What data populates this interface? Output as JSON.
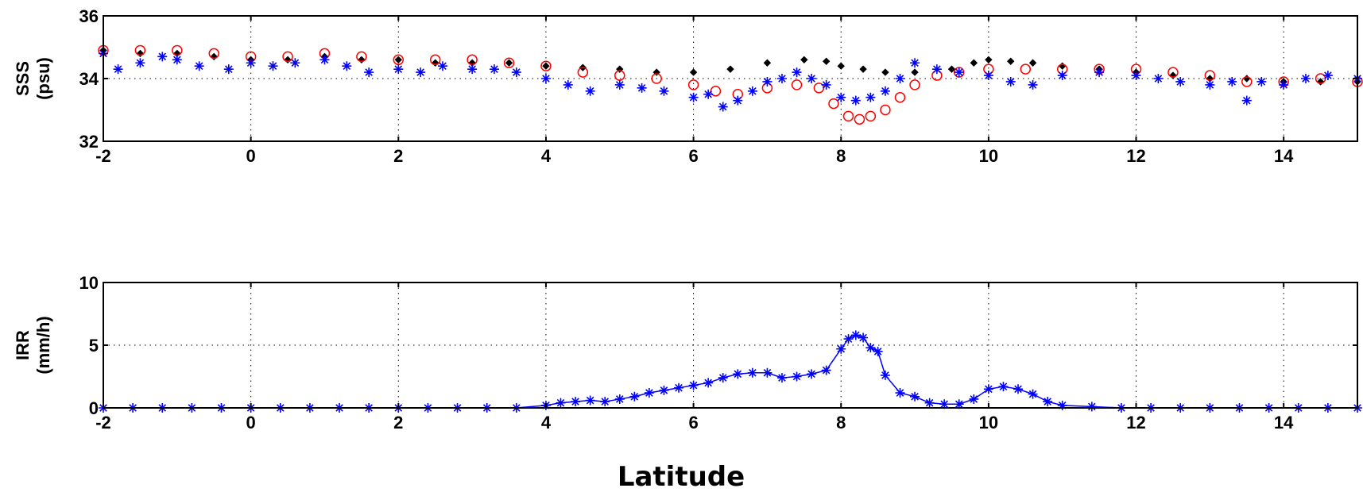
{
  "xlabel": "Latitude",
  "chart_data": [
    {
      "type": "scatter",
      "panel": "top",
      "ylabel_lines": [
        "SSS",
        "(psu)"
      ],
      "xlim": [
        -2,
        15
      ],
      "ylim": [
        32,
        36
      ],
      "xticks": [
        -2,
        0,
        2,
        4,
        6,
        8,
        10,
        12,
        14
      ],
      "yticks": [
        32,
        34,
        36
      ],
      "grid": true,
      "series": [
        {
          "color": "#000000",
          "marker": "diamond",
          "x": [
            -2,
            -1.5,
            -1,
            -0.5,
            0,
            0.5,
            1,
            1.5,
            2,
            2.5,
            3,
            3.5,
            4,
            4.5,
            5,
            5.5,
            6,
            6.5,
            7,
            7.5,
            7.8,
            8,
            8.3,
            8.6,
            9,
            9.5,
            9.8,
            10,
            10.3,
            10.6,
            11,
            11.5,
            12,
            12.5,
            13,
            13.5,
            14,
            14.5,
            15
          ],
          "y": [
            34.9,
            34.8,
            34.8,
            34.7,
            34.6,
            34.6,
            34.7,
            34.6,
            34.6,
            34.5,
            34.5,
            34.5,
            34.4,
            34.35,
            34.3,
            34.2,
            34.2,
            34.3,
            34.5,
            34.6,
            34.55,
            34.4,
            34.3,
            34.2,
            34.2,
            34.3,
            34.5,
            34.6,
            34.55,
            34.5,
            34.4,
            34.3,
            34.2,
            34.1,
            34.0,
            34.0,
            33.9,
            33.9,
            33.9
          ]
        },
        {
          "color": "#ff0000",
          "marker": "circle",
          "x": [
            -2,
            -1.5,
            -1,
            -0.5,
            0,
            0.5,
            1,
            1.5,
            2,
            2.5,
            3,
            3.5,
            4,
            4.5,
            5,
            5.5,
            6,
            6.3,
            6.6,
            7,
            7.4,
            7.7,
            7.9,
            8.1,
            8.25,
            8.4,
            8.6,
            8.8,
            9,
            9.3,
            9.6,
            10,
            10.5,
            11,
            11.5,
            12,
            12.5,
            13,
            13.5,
            14,
            14.5,
            15
          ],
          "y": [
            34.9,
            34.9,
            34.9,
            34.8,
            34.7,
            34.7,
            34.8,
            34.7,
            34.6,
            34.6,
            34.6,
            34.5,
            34.4,
            34.2,
            34.1,
            34.0,
            33.8,
            33.6,
            33.5,
            33.7,
            33.8,
            33.7,
            33.2,
            32.8,
            32.7,
            32.8,
            33.0,
            33.4,
            33.8,
            34.1,
            34.2,
            34.3,
            34.3,
            34.3,
            34.3,
            34.3,
            34.2,
            34.1,
            33.9,
            33.9,
            34.0,
            33.9
          ]
        },
        {
          "color": "#0000ff",
          "marker": "star",
          "x": [
            -2,
            -1.8,
            -1.5,
            -1.2,
            -1,
            -0.7,
            -0.3,
            0,
            0.3,
            0.6,
            1,
            1.3,
            1.6,
            2,
            2.3,
            2.6,
            3,
            3.3,
            3.6,
            4,
            4.3,
            4.6,
            5,
            5.3,
            5.6,
            6,
            6.2,
            6.4,
            6.6,
            6.8,
            7,
            7.2,
            7.4,
            7.6,
            7.8,
            8,
            8.2,
            8.4,
            8.6,
            8.8,
            9,
            9.3,
            9.6,
            10,
            10.3,
            10.6,
            11,
            11.5,
            12,
            12.3,
            12.6,
            13,
            13.3,
            13.5,
            13.7,
            14,
            14.3,
            14.6,
            15
          ],
          "y": [
            34.8,
            34.3,
            34.5,
            34.7,
            34.6,
            34.4,
            34.3,
            34.5,
            34.4,
            34.5,
            34.6,
            34.4,
            34.2,
            34.3,
            34.2,
            34.4,
            34.3,
            34.3,
            34.2,
            34.0,
            33.8,
            33.6,
            33.8,
            33.7,
            33.6,
            33.4,
            33.5,
            33.1,
            33.3,
            33.6,
            33.9,
            34.0,
            34.2,
            34.0,
            33.8,
            33.4,
            33.3,
            33.4,
            33.6,
            34.0,
            34.5,
            34.3,
            34.2,
            34.1,
            33.9,
            33.8,
            34.1,
            34.2,
            34.1,
            34.0,
            33.9,
            33.8,
            33.9,
            33.3,
            33.9,
            33.8,
            34.0,
            34.1,
            34.0
          ]
        }
      ]
    },
    {
      "type": "line",
      "panel": "bottom",
      "ylabel_lines": [
        "IRR",
        "(mm/h)"
      ],
      "xlim": [
        -2,
        15
      ],
      "ylim": [
        0,
        10
      ],
      "xticks": [
        -2,
        0,
        2,
        4,
        6,
        8,
        10,
        12,
        14
      ],
      "yticks": [
        0,
        5,
        10
      ],
      "grid": true,
      "series": [
        {
          "color": "#0000ff",
          "marker": "star",
          "x": [
            -2,
            -1.6,
            -1.2,
            -0.8,
            -0.4,
            0,
            0.4,
            0.8,
            1.2,
            1.6,
            2,
            2.4,
            2.8,
            3.2,
            3.6,
            4,
            4.2,
            4.4,
            4.6,
            4.8,
            5,
            5.2,
            5.4,
            5.6,
            5.8,
            6,
            6.2,
            6.4,
            6.6,
            6.8,
            7,
            7.2,
            7.4,
            7.6,
            7.8,
            8,
            8.1,
            8.2,
            8.3,
            8.4,
            8.5,
            8.6,
            8.8,
            9,
            9.2,
            9.4,
            9.6,
            9.8,
            10,
            10.2,
            10.4,
            10.6,
            10.8,
            11,
            11.4,
            11.8,
            12.2,
            12.6,
            13,
            13.4,
            13.8,
            14.2,
            14.6,
            15
          ],
          "y": [
            0,
            0,
            0,
            0,
            0,
            0,
            0,
            0,
            0,
            0,
            0,
            0,
            0,
            0,
            0,
            0.2,
            0.4,
            0.5,
            0.6,
            0.5,
            0.7,
            0.9,
            1.2,
            1.4,
            1.6,
            1.8,
            2.0,
            2.4,
            2.7,
            2.8,
            2.8,
            2.4,
            2.5,
            2.7,
            3.0,
            4.7,
            5.5,
            5.8,
            5.6,
            4.8,
            4.5,
            2.6,
            1.2,
            0.9,
            0.4,
            0.3,
            0.3,
            0.7,
            1.5,
            1.7,
            1.5,
            1.1,
            0.5,
            0.2,
            0.1,
            0,
            0,
            0,
            0,
            0,
            0,
            0,
            0,
            0
          ]
        }
      ]
    }
  ]
}
